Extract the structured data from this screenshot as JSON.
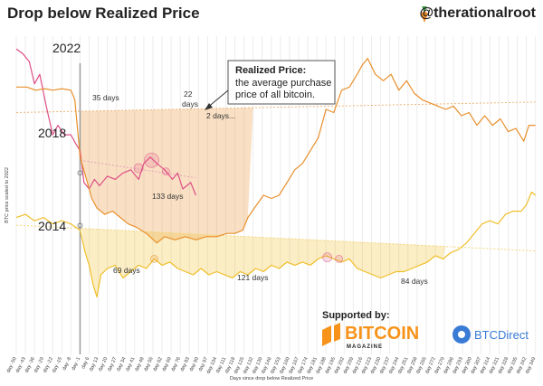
{
  "header": {
    "title": "Drop below Realized Price",
    "handle": "@therationalroot"
  },
  "colors": {
    "c2022": "#de4f87",
    "c2018": "#e8902c",
    "c2014": "#f0bf2a",
    "realized2022": "#e79fba",
    "realized2018": "#efb577",
    "realized2014": "#f2d57a",
    "grid": "#ececec",
    "vline": "#9a9a9a"
  },
  "chart_data": {
    "type": "line",
    "title": "Drop below Realized Price",
    "xlabel": "Days since drop below Realized Price",
    "ylabel": "BTC price scaled to 2022",
    "x_ticks": [
      "day -50",
      "day -43",
      "day -36",
      "day -29",
      "day -22",
      "day -15",
      "day -8",
      "day -1",
      "day 6",
      "day 13",
      "day 20",
      "day 27",
      "day 34",
      "day 41",
      "day 48",
      "day 55",
      "day 62",
      "day 69",
      "day 76",
      "day 83",
      "day 90",
      "day 97",
      "day 104",
      "day 111",
      "day 118",
      "day 125",
      "day 132",
      "day 139",
      "day 146",
      "day 153",
      "day 160",
      "day 167",
      "day 174",
      "day 181",
      "day 188",
      "day 195",
      "day 202",
      "day 209",
      "day 216",
      "day 223",
      "day 230",
      "day 237",
      "day 244",
      "day 251",
      "day 258",
      "day 265",
      "day 272",
      "day 279",
      "day 286",
      "day 293",
      "day 300",
      "day 307",
      "day 314",
      "day 321",
      "day 328",
      "day 335",
      "day 342",
      "day 349"
    ],
    "xlim": [
      -50,
      352
    ],
    "grid": true,
    "legend_position": "none",
    "series": [
      {
        "name": "2022",
        "color": "#de4f87",
        "values": [
          [
            -50,
            0.96
          ],
          [
            -45,
            0.945
          ],
          [
            -40,
            0.92
          ],
          [
            -36,
            0.85
          ],
          [
            -32,
            0.88
          ],
          [
            -27,
            0.78
          ],
          [
            -22,
            0.69
          ],
          [
            -18,
            0.72
          ],
          [
            -13,
            0.69
          ],
          [
            -8,
            0.69
          ],
          [
            -4,
            0.66
          ],
          [
            -1,
            0.64
          ],
          [
            2,
            0.54
          ],
          [
            6,
            0.52
          ],
          [
            10,
            0.55
          ],
          [
            14,
            0.53
          ],
          [
            20,
            0.56
          ],
          [
            26,
            0.55
          ],
          [
            32,
            0.57
          ],
          [
            38,
            0.58
          ],
          [
            44,
            0.55
          ],
          [
            48,
            0.6
          ],
          [
            53,
            0.62
          ],
          [
            58,
            0.6
          ],
          [
            64,
            0.58
          ],
          [
            70,
            0.55
          ],
          [
            74,
            0.57
          ],
          [
            78,
            0.52
          ],
          [
            84,
            0.54
          ],
          [
            88,
            0.5
          ]
        ]
      },
      {
        "name": "2018",
        "color": "#e8902c",
        "values": [
          [
            -50,
            0.84
          ],
          [
            -42,
            0.84
          ],
          [
            -35,
            0.83
          ],
          [
            -28,
            0.835
          ],
          [
            -22,
            0.83
          ],
          [
            -15,
            0.835
          ],
          [
            -8,
            0.83
          ],
          [
            -5,
            0.8
          ],
          [
            -1,
            0.62
          ],
          [
            4,
            0.55
          ],
          [
            8,
            0.49
          ],
          [
            12,
            0.46
          ],
          [
            18,
            0.44
          ],
          [
            24,
            0.45
          ],
          [
            30,
            0.43
          ],
          [
            36,
            0.41
          ],
          [
            42,
            0.4
          ],
          [
            50,
            0.38
          ],
          [
            58,
            0.35
          ],
          [
            64,
            0.37
          ],
          [
            72,
            0.36
          ],
          [
            80,
            0.37
          ],
          [
            88,
            0.36
          ],
          [
            96,
            0.37
          ],
          [
            104,
            0.37
          ],
          [
            112,
            0.38
          ],
          [
            118,
            0.38
          ],
          [
            124,
            0.39
          ],
          [
            128,
            0.43
          ],
          [
            133,
            0.46
          ],
          [
            140,
            0.5
          ],
          [
            146,
            0.49
          ],
          [
            152,
            0.5
          ],
          [
            158,
            0.54
          ],
          [
            164,
            0.58
          ],
          [
            170,
            0.6
          ],
          [
            176,
            0.64
          ],
          [
            182,
            0.68
          ],
          [
            188,
            0.77
          ],
          [
            194,
            0.76
          ],
          [
            200,
            0.83
          ],
          [
            206,
            0.84
          ],
          [
            212,
            0.88
          ],
          [
            216,
            0.91
          ],
          [
            220,
            0.93
          ],
          [
            226,
            0.88
          ],
          [
            232,
            0.86
          ],
          [
            238,
            0.88
          ],
          [
            244,
            0.83
          ],
          [
            250,
            0.86
          ],
          [
            256,
            0.82
          ],
          [
            262,
            0.8
          ],
          [
            268,
            0.79
          ],
          [
            274,
            0.78
          ],
          [
            280,
            0.77
          ],
          [
            286,
            0.78
          ],
          [
            292,
            0.75
          ],
          [
            298,
            0.76
          ],
          [
            304,
            0.72
          ],
          [
            310,
            0.75
          ],
          [
            316,
            0.72
          ],
          [
            322,
            0.74
          ],
          [
            328,
            0.7
          ],
          [
            334,
            0.71
          ],
          [
            340,
            0.67
          ],
          [
            344,
            0.72
          ],
          [
            349,
            0.72
          ]
        ]
      },
      {
        "name": "2014",
        "color": "#f0bf2a",
        "values": [
          [
            -50,
            0.43
          ],
          [
            -43,
            0.44
          ],
          [
            -36,
            0.42
          ],
          [
            -29,
            0.43
          ],
          [
            -22,
            0.41
          ],
          [
            -15,
            0.42
          ],
          [
            -8,
            0.41
          ],
          [
            -1,
            0.39
          ],
          [
            3,
            0.32
          ],
          [
            6,
            0.28
          ],
          [
            9,
            0.22
          ],
          [
            12,
            0.18
          ],
          [
            15,
            0.25
          ],
          [
            20,
            0.27
          ],
          [
            26,
            0.28
          ],
          [
            32,
            0.24
          ],
          [
            38,
            0.26
          ],
          [
            44,
            0.28
          ],
          [
            50,
            0.27
          ],
          [
            56,
            0.3
          ],
          [
            62,
            0.28
          ],
          [
            68,
            0.29
          ],
          [
            74,
            0.27
          ],
          [
            80,
            0.26
          ],
          [
            86,
            0.25
          ],
          [
            92,
            0.27
          ],
          [
            98,
            0.25
          ],
          [
            104,
            0.26
          ],
          [
            110,
            0.25
          ],
          [
            116,
            0.24
          ],
          [
            122,
            0.26
          ],
          [
            128,
            0.25
          ],
          [
            134,
            0.27
          ],
          [
            140,
            0.26
          ],
          [
            146,
            0.28
          ],
          [
            152,
            0.27
          ],
          [
            158,
            0.29
          ],
          [
            164,
            0.28
          ],
          [
            170,
            0.29
          ],
          [
            176,
            0.28
          ],
          [
            182,
            0.3
          ],
          [
            188,
            0.31
          ],
          [
            194,
            0.3
          ],
          [
            200,
            0.29
          ],
          [
            206,
            0.3
          ],
          [
            212,
            0.27
          ],
          [
            218,
            0.26
          ],
          [
            224,
            0.25
          ],
          [
            230,
            0.24
          ],
          [
            236,
            0.25
          ],
          [
            242,
            0.26
          ],
          [
            248,
            0.26
          ],
          [
            254,
            0.27
          ],
          [
            260,
            0.28
          ],
          [
            266,
            0.29
          ],
          [
            272,
            0.31
          ],
          [
            278,
            0.3
          ],
          [
            284,
            0.32
          ],
          [
            290,
            0.33
          ],
          [
            296,
            0.35
          ],
          [
            302,
            0.38
          ],
          [
            308,
            0.41
          ],
          [
            314,
            0.42
          ],
          [
            320,
            0.41
          ],
          [
            326,
            0.44
          ],
          [
            332,
            0.45
          ],
          [
            338,
            0.45
          ],
          [
            342,
            0.47
          ],
          [
            346,
            0.51
          ],
          [
            349,
            0.5
          ]
        ]
      }
    ],
    "realized_price_lines": [
      {
        "cycle": "2022",
        "from": [
          -1,
          0.61
        ],
        "to": [
          88,
          0.555
        ]
      },
      {
        "cycle": "2018",
        "from": [
          -50,
          0.76
        ],
        "to": [
          349,
          0.793
        ]
      },
      {
        "cycle": "2014",
        "from": [
          -50,
          0.406
        ],
        "to": [
          349,
          0.325
        ]
      }
    ],
    "annotations": [
      {
        "text": "2022",
        "kind": "cycle-label"
      },
      {
        "text": "2018",
        "kind": "cycle-label"
      },
      {
        "text": "2014",
        "kind": "cycle-label"
      },
      {
        "text": "35 days",
        "kind": "duration"
      },
      {
        "text": "22",
        "kind": "duration"
      },
      {
        "text": "days",
        "kind": "duration"
      },
      {
        "text": "2 days...",
        "kind": "duration"
      },
      {
        "text": "133 days",
        "kind": "duration"
      },
      {
        "text": "69 days",
        "kind": "duration"
      },
      {
        "text": "121 days",
        "kind": "duration"
      },
      {
        "text": "84 days",
        "kind": "duration"
      }
    ],
    "callout": {
      "title": "Realized Price:",
      "lines": [
        "the average purchase",
        "price of all bitcoin."
      ]
    }
  },
  "sponsors": {
    "supported_by": "Supported by:",
    "bitcoin_magazine": "BITCOIN",
    "bitcoin_magazine_sub": "MAGAZINE",
    "btcdirect": "BTCDirect"
  }
}
